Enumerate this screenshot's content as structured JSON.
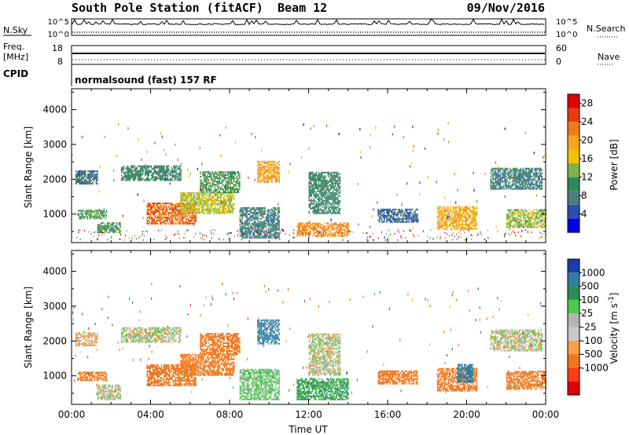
{
  "header": {
    "station": "South Pole Station (fitACF)",
    "beam": "Beam 12",
    "date": "09/Nov/2016"
  },
  "strips": {
    "nsky": {
      "label": "N.Sky",
      "tick_top": "10^5",
      "tick_bottom": "10^0",
      "right_label": "N.Search",
      "right_tick_top": "10^5",
      "right_tick_bottom": "10^0"
    },
    "freq": {
      "label_line1": "Freq.",
      "label_line2": "[MHz]",
      "tick_top": "18",
      "tick_bottom": "8",
      "right_label": "Nave",
      "right_tick_top": "60",
      "right_tick_bottom": "0"
    },
    "cpid": {
      "label": "CPID",
      "value": "normalsound (fast) 157 RF"
    }
  },
  "time_axis": {
    "label": "Time UT",
    "ticks": [
      "00:00",
      "04:00",
      "08:00",
      "12:00",
      "16:00",
      "20:00",
      "00:00"
    ]
  },
  "colors": {
    "power_scale": [
      "#0000ee",
      "#2a4eb0",
      "#4a7f7a",
      "#2e8b57",
      "#7db548",
      "#f2c200",
      "#f5a623",
      "#f07b1e",
      "#ea3a12",
      "#e00000"
    ],
    "velocity_scale": [
      "#e00000",
      "#ff3c1a",
      "#f0781e",
      "#f5a04a",
      "#c8c8c8",
      "#b4b4b4",
      "#4cc84c",
      "#2e8b57",
      "#2e7fa0",
      "#1e3ca8"
    ]
  },
  "chart_data": [
    {
      "type": "heatmap",
      "name": "power",
      "ylabel": "Slant Range [km]",
      "xlabel": "",
      "xlim_hours": [
        0,
        24
      ],
      "ylim": [
        180,
        4600
      ],
      "yticks": [
        1000,
        2000,
        3000,
        4000
      ],
      "colorbar": {
        "label": "Power [dB]",
        "ticks": [
          4,
          8,
          12,
          16,
          20,
          24,
          28
        ],
        "range": [
          0,
          30
        ]
      },
      "regions": [
        {
          "t0": 0.2,
          "t1": 1.3,
          "r0": 1850,
          "r1": 2250,
          "value": 7
        },
        {
          "t0": 0.3,
          "t1": 1.8,
          "r0": 850,
          "r1": 1100,
          "value": 11
        },
        {
          "t0": 1.3,
          "t1": 2.5,
          "r0": 450,
          "r1": 750,
          "value": 10
        },
        {
          "t0": 2.5,
          "t1": 5.5,
          "r0": 1950,
          "r1": 2400,
          "value": 9
        },
        {
          "t0": 3.8,
          "t1": 6.3,
          "r0": 700,
          "r1": 1300,
          "value": 23
        },
        {
          "t0": 5.5,
          "t1": 8.2,
          "r0": 1000,
          "r1": 1600,
          "value": 15
        },
        {
          "t0": 6.5,
          "t1": 8.5,
          "r0": 1600,
          "r1": 2200,
          "value": 11
        },
        {
          "t0": 9.4,
          "t1": 10.5,
          "r0": 1900,
          "r1": 2500,
          "value": 20
        },
        {
          "t0": 8.5,
          "t1": 10.5,
          "r0": 300,
          "r1": 1200,
          "value": 8
        },
        {
          "t0": 11.4,
          "t1": 14.0,
          "r0": 350,
          "r1": 750,
          "value": 21
        },
        {
          "t0": 12.0,
          "t1": 13.6,
          "r0": 1000,
          "r1": 2200,
          "value": 9
        },
        {
          "t0": 15.5,
          "t1": 17.5,
          "r0": 750,
          "r1": 1150,
          "value": 6
        },
        {
          "t0": 18.5,
          "t1": 20.5,
          "r0": 550,
          "r1": 1200,
          "value": 19
        },
        {
          "t0": 21.2,
          "t1": 23.8,
          "r0": 1700,
          "r1": 2300,
          "value": 8
        },
        {
          "t0": 22.0,
          "t1": 24.0,
          "r0": 600,
          "r1": 1100,
          "value": 14
        }
      ]
    },
    {
      "type": "heatmap",
      "name": "velocity",
      "ylabel": "Slant Range [km]",
      "xlabel": "Time UT",
      "xlim_hours": [
        0,
        24
      ],
      "ylim": [
        180,
        4600
      ],
      "yticks": [
        1000,
        2000,
        3000,
        4000
      ],
      "colorbar": {
        "label": "Velocity [m s^-1]",
        "ticks": [
          "1000",
          "500",
          "100",
          "25",
          "-25",
          "-100",
          "-500",
          "-1000"
        ]
      },
      "regions": [
        {
          "t0": 0.2,
          "t1": 1.3,
          "r0": 1850,
          "r1": 2250,
          "value": -40
        },
        {
          "t0": 0.3,
          "t1": 1.8,
          "r0": 850,
          "r1": 1100,
          "value": -300
        },
        {
          "t0": 1.3,
          "t1": 2.5,
          "r0": 300,
          "r1": 750,
          "value": 0
        },
        {
          "t0": 2.5,
          "t1": 5.5,
          "r0": 1950,
          "r1": 2400,
          "value": 0
        },
        {
          "t0": 3.8,
          "t1": 6.3,
          "r0": 700,
          "r1": 1300,
          "value": -300
        },
        {
          "t0": 5.5,
          "t1": 8.2,
          "r0": 1000,
          "r1": 1600,
          "value": -250
        },
        {
          "t0": 6.5,
          "t1": 8.5,
          "r0": 1600,
          "r1": 2200,
          "value": -200
        },
        {
          "t0": 9.4,
          "t1": 10.5,
          "r0": 1900,
          "r1": 2600,
          "value": 800
        },
        {
          "t0": 8.5,
          "t1": 10.5,
          "r0": 300,
          "r1": 1200,
          "value": 50
        },
        {
          "t0": 11.4,
          "t1": 14.0,
          "r0": 300,
          "r1": 900,
          "value": 120
        },
        {
          "t0": 12.0,
          "t1": 13.6,
          "r0": 1000,
          "r1": 2200,
          "value": 0
        },
        {
          "t0": 15.5,
          "t1": 17.5,
          "r0": 750,
          "r1": 1150,
          "value": -250
        },
        {
          "t0": 18.5,
          "t1": 20.5,
          "r0": 550,
          "r1": 1200,
          "value": -400
        },
        {
          "t0": 19.5,
          "t1": 20.3,
          "r0": 800,
          "r1": 1300,
          "value": 600
        },
        {
          "t0": 21.2,
          "t1": 23.8,
          "r0": 1700,
          "r1": 2300,
          "value": 0
        },
        {
          "t0": 22.0,
          "t1": 24.0,
          "r0": 600,
          "r1": 1100,
          "value": -300
        }
      ]
    }
  ]
}
